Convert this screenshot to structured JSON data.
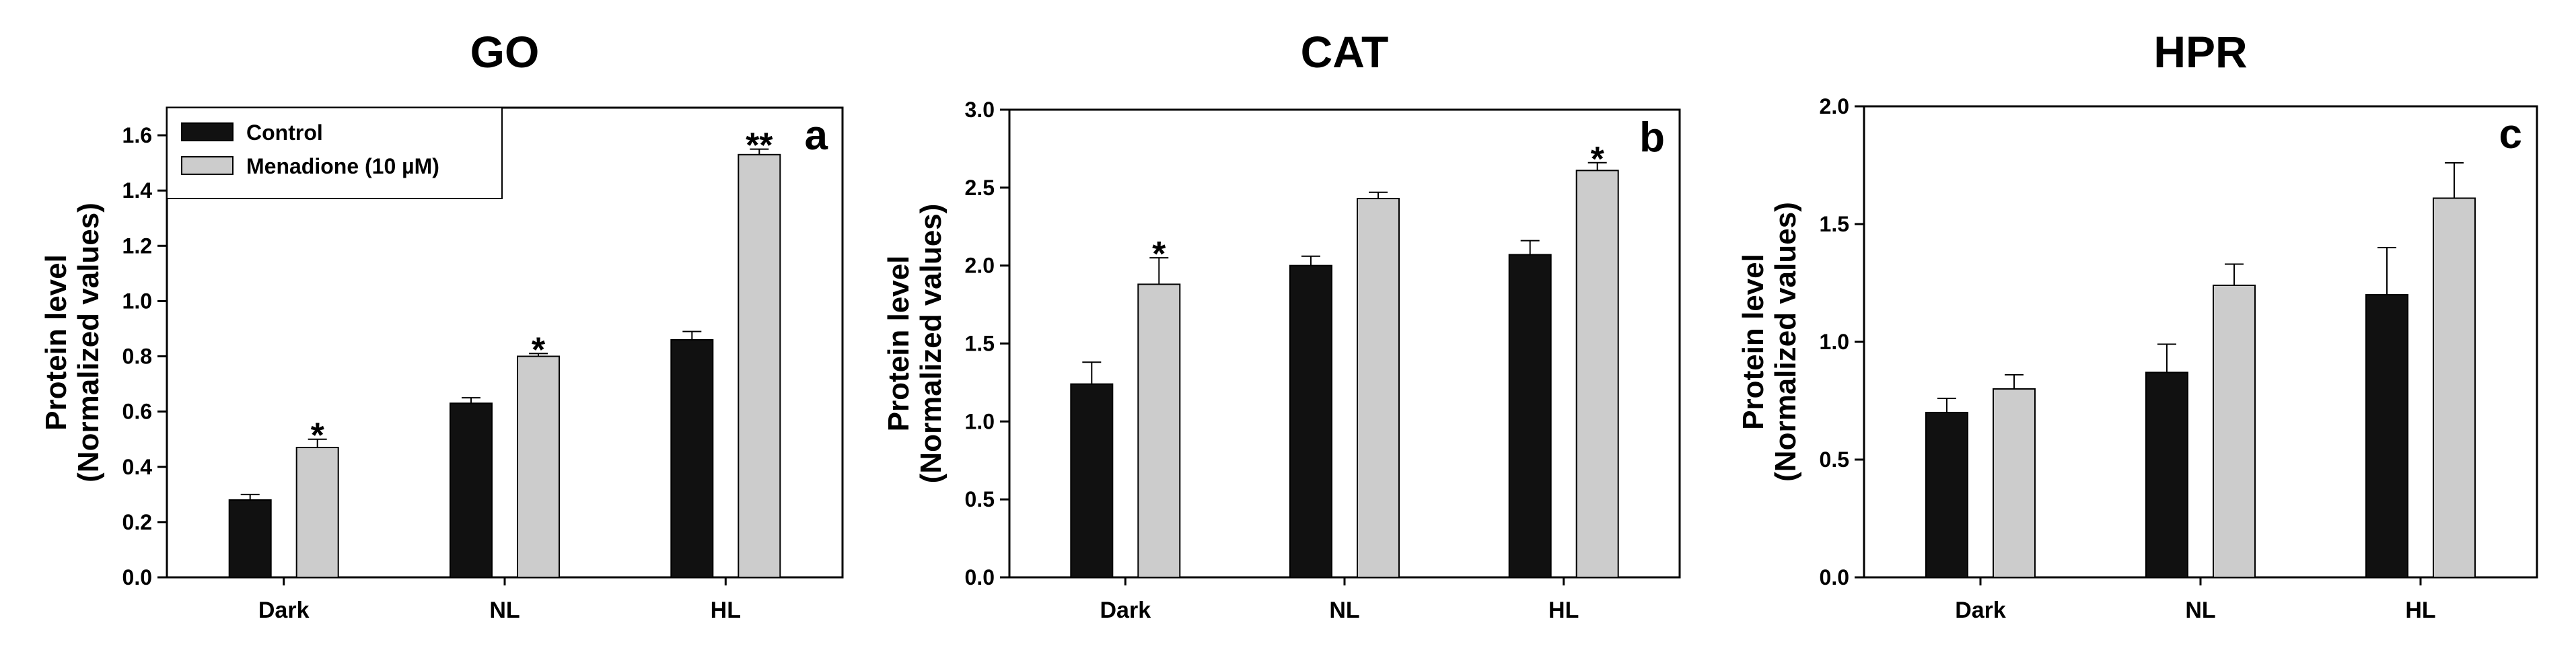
{
  "chart_data": [
    {
      "type": "bar",
      "title": "GO",
      "panel_label": "a",
      "ylabel_line1": "Protein level",
      "ylabel_line2": "(Normalized values)",
      "xlabel": "",
      "categories": [
        "Dark",
        "NL",
        "HL"
      ],
      "ylim": [
        0,
        1.7
      ],
      "yticks": [
        "0.0",
        "0.2",
        "0.4",
        "0.6",
        "0.8",
        "1.0",
        "1.2",
        "1.4",
        "1.6"
      ],
      "series": [
        {
          "name": "Control",
          "color": "#111111",
          "values": [
            0.28,
            0.63,
            0.86
          ],
          "errors": [
            0.02,
            0.02,
            0.03
          ],
          "significance": [
            "",
            "",
            ""
          ]
        },
        {
          "name": "Menadione (10 µM)",
          "color": "#cccccc",
          "values": [
            0.47,
            0.8,
            1.53
          ],
          "errors": [
            0.03,
            0.01,
            0.02
          ],
          "significance": [
            "*",
            "*",
            "**"
          ]
        }
      ],
      "legend": {
        "position": "top-left",
        "entries": [
          "Control",
          "Menadione (10 µM)"
        ]
      }
    },
    {
      "type": "bar",
      "title": "CAT",
      "panel_label": "b",
      "ylabel_line1": "Protein level",
      "ylabel_line2": "(Normalized values)",
      "xlabel": "",
      "categories": [
        "Dark",
        "NL",
        "HL"
      ],
      "ylim": [
        0,
        3.0
      ],
      "yticks": [
        "0.0",
        "0.5",
        "1.0",
        "1.5",
        "2.0",
        "2.5",
        "3.0"
      ],
      "series": [
        {
          "name": "Control",
          "color": "#111111",
          "values": [
            1.24,
            2.0,
            2.07
          ],
          "errors": [
            0.14,
            0.06,
            0.09
          ],
          "significance": [
            "",
            "",
            ""
          ]
        },
        {
          "name": "Menadione (10 µM)",
          "color": "#cccccc",
          "values": [
            1.88,
            2.43,
            2.61
          ],
          "errors": [
            0.17,
            0.04,
            0.05
          ],
          "significance": [
            "*",
            "",
            "*"
          ]
        }
      ]
    },
    {
      "type": "bar",
      "title": "HPR",
      "panel_label": "c",
      "ylabel_line1": "Protein level",
      "ylabel_line2": "(Normalized values)",
      "xlabel": "",
      "categories": [
        "Dark",
        "NL",
        "HL"
      ],
      "ylim": [
        0,
        2.0
      ],
      "yticks": [
        "0.0",
        "0.5",
        "1.0",
        "1.5",
        "2.0"
      ],
      "series": [
        {
          "name": "Control",
          "color": "#111111",
          "values": [
            0.7,
            0.87,
            1.2
          ],
          "errors": [
            0.06,
            0.12,
            0.2
          ],
          "significance": [
            "",
            "",
            ""
          ]
        },
        {
          "name": "Menadione (10 µM)",
          "color": "#cccccc",
          "values": [
            0.8,
            1.24,
            1.61
          ],
          "errors": [
            0.06,
            0.09,
            0.15
          ],
          "significance": [
            "",
            "",
            ""
          ]
        }
      ]
    }
  ]
}
